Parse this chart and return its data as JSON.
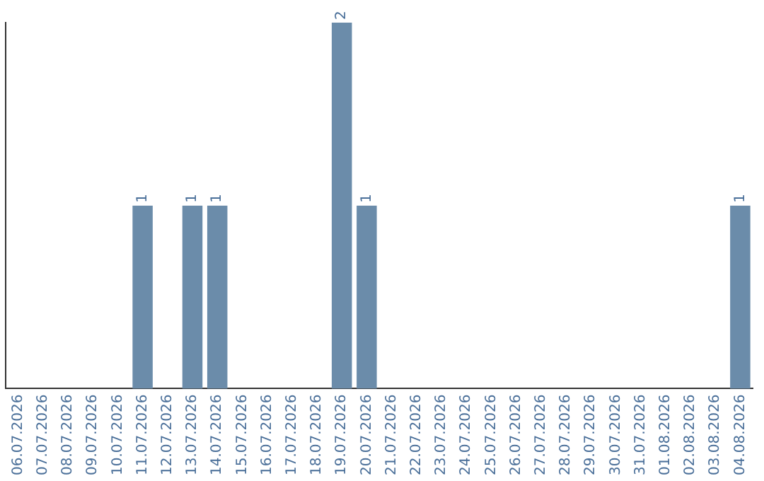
{
  "chart_data": {
    "type": "bar",
    "categories": [
      "06.07.2026",
      "07.07.2026",
      "08.07.2026",
      "09.07.2026",
      "10.07.2026",
      "11.07.2026",
      "12.07.2026",
      "13.07.2026",
      "14.07.2026",
      "15.07.2026",
      "16.07.2026",
      "17.07.2026",
      "18.07.2026",
      "19.07.2026",
      "20.07.2026",
      "21.07.2026",
      "22.07.2026",
      "23.07.2026",
      "24.07.2026",
      "25.07.2026",
      "26.07.2026",
      "27.07.2026",
      "28.07.2026",
      "29.07.2026",
      "30.07.2026",
      "31.07.2026",
      "01.08.2026",
      "02.08.2026",
      "03.08.2026",
      "04.08.2026"
    ],
    "values": [
      0,
      0,
      0,
      0,
      0,
      1,
      0,
      1,
      1,
      0,
      0,
      0,
      0,
      2,
      1,
      0,
      0,
      0,
      0,
      0,
      0,
      0,
      0,
      0,
      0,
      0,
      0,
      0,
      0,
      1
    ],
    "value_labels": [
      null,
      null,
      null,
      null,
      null,
      "1",
      null,
      "1",
      "1",
      null,
      null,
      null,
      null,
      "2",
      "1",
      null,
      null,
      null,
      null,
      null,
      null,
      null,
      null,
      null,
      null,
      null,
      null,
      null,
      null,
      "1"
    ],
    "color": "#6b8caa",
    "grid": false,
    "legend": false,
    "tick_labels": "x"
  }
}
